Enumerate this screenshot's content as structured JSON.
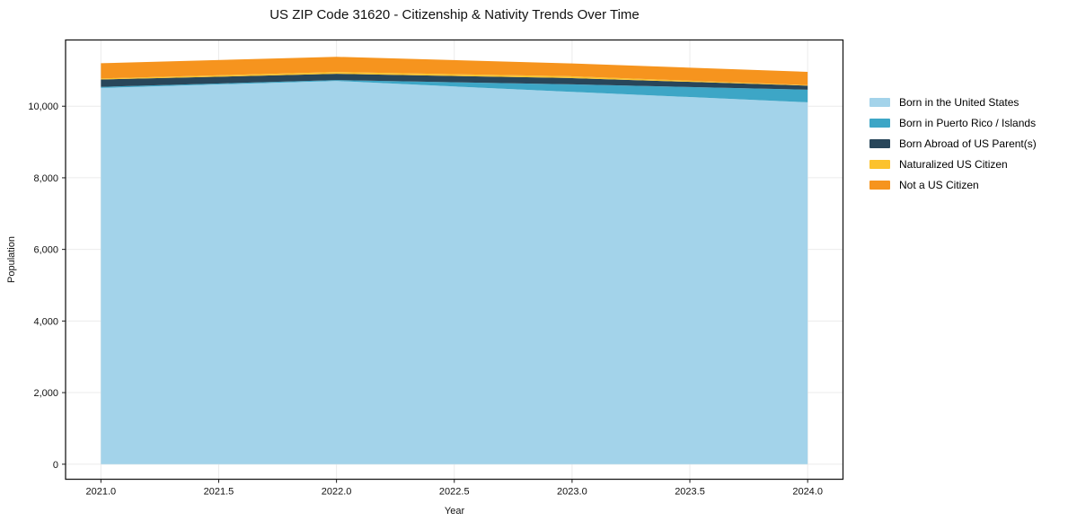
{
  "page": {
    "background": "#ffffff"
  },
  "colors": {
    "grid": "#ebebeb",
    "spine": "#1a1a1a",
    "tick_text": "#111111"
  },
  "chart_data": {
    "type": "area",
    "stacked": true,
    "title": "US ZIP Code 31620 - Citizenship & Nativity Trends Over Time",
    "xlabel": "Year",
    "ylabel": "Population",
    "x": [
      2021,
      2022,
      2023,
      2024
    ],
    "series": [
      {
        "name": "Born in the United States",
        "color": "#a3d3ea",
        "values": [
          10510,
          10705,
          10400,
          10110
        ]
      },
      {
        "name": "Born in Puerto Rico / Islands",
        "color": "#3da6c6",
        "values": [
          30,
          25,
          210,
          350
        ]
      },
      {
        "name": "Born Abroad of US Parent(s)",
        "color": "#28465a",
        "values": [
          205,
          175,
          175,
          115
        ]
      },
      {
        "name": "Naturalized US Citizen",
        "color": "#fcc22d",
        "values": [
          30,
          50,
          50,
          15
        ]
      },
      {
        "name": "Not a US Citizen",
        "color": "#f6941e",
        "values": [
          425,
          425,
          360,
          370
        ]
      }
    ],
    "totals": [
      11200,
      11380,
      11195,
      10960
    ],
    "xlim": [
      2020.85,
      2024.15
    ],
    "ylim": [
      -420,
      11850
    ],
    "xticks": [
      2021.0,
      2021.5,
      2022.0,
      2022.5,
      2023.0,
      2023.5,
      2024.0
    ],
    "xtick_labels": [
      "2021.0",
      "2021.5",
      "2022.0",
      "2022.5",
      "2023.0",
      "2023.5",
      "2024.0"
    ],
    "yticks": [
      0,
      2000,
      4000,
      6000,
      8000,
      10000
    ],
    "ytick_labels": [
      "0",
      "2,000",
      "4,000",
      "6,000",
      "8,000",
      "10,000"
    ],
    "grid": true,
    "legend_position": "right-outside"
  }
}
